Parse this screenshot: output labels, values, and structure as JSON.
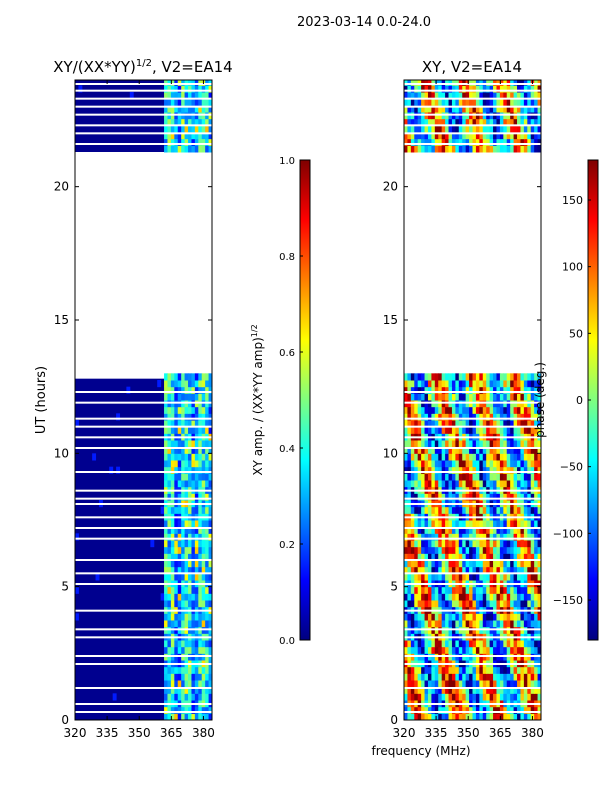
{
  "figure_title": "2023-03-14 0.0-24.0",
  "xlabel": "frequency (MHz)",
  "colors": {
    "heatmap_background": "#00008f",
    "gap": "#ffffff",
    "axis": "#000000"
  },
  "chart_data": [
    {
      "type": "heatmap",
      "title": "XY/(XX*YY)",
      "title_exponent": "1/2",
      "title_suffix": ", V2=EA14",
      "xlabel": "",
      "ylabel": "UT (hours)",
      "x_ticks": [
        "320",
        "335",
        "350",
        "365",
        "380"
      ],
      "x_tick_values": [
        320,
        335,
        350,
        365,
        380
      ],
      "xlim": [
        320,
        384
      ],
      "y_ticks": [
        "0",
        "5",
        "10",
        "15",
        "20"
      ],
      "y_tick_values": [
        0,
        5,
        10,
        15,
        20
      ],
      "ylim": [
        0,
        24
      ],
      "data_coverage_hours": [
        [
          0,
          12.8
        ],
        [
          21.3,
          24
        ]
      ],
      "summary": "amplitude ratio mostly near 0.0 below 361 MHz, values ~0.1-0.5 above 361 MHz",
      "colorbar": {
        "label": "XY amp. / (XX*YY amp)",
        "label_exponent": "1/2",
        "ticks": [
          "0.0",
          "0.2",
          "0.4",
          "0.6",
          "0.8",
          "1.0"
        ],
        "tick_values": [
          0.0,
          0.2,
          0.4,
          0.6,
          0.8,
          1.0
        ],
        "range": [
          0.0,
          1.0
        ]
      }
    },
    {
      "type": "heatmap",
      "title": "XY, V2=EA14",
      "xlabel": "",
      "ylabel": "",
      "x_ticks": [
        "320",
        "335",
        "350",
        "365",
        "380"
      ],
      "x_tick_values": [
        320,
        335,
        350,
        365,
        380
      ],
      "xlim": [
        320,
        384
      ],
      "y_ticks": [
        "0",
        "5",
        "10",
        "15",
        "20"
      ],
      "y_tick_values": [
        0,
        5,
        10,
        15,
        20
      ],
      "ylim": [
        0,
        24
      ],
      "data_coverage_hours": [
        [
          0,
          12.8
        ],
        [
          21.3,
          24
        ]
      ],
      "summary": "phase values scattered across full -180 to 180 degree range",
      "colorbar": {
        "label": "phase (deg.)",
        "ticks": [
          "−150",
          "−100",
          "−50",
          "0",
          "50",
          "100",
          "150"
        ],
        "tick_values": [
          -150,
          -100,
          -50,
          0,
          50,
          100,
          150
        ],
        "range": [
          -180,
          180
        ]
      }
    }
  ]
}
